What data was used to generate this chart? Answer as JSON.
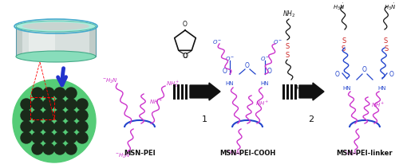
{
  "bg_color": "#ffffff",
  "pei_color": "#cc33cc",
  "blue_color": "#2244cc",
  "red_color": "#cc2222",
  "black_color": "#111111",
  "green_sphere": "#55cc77",
  "green_dark": "#339955",
  "pore_color": "#1a2a1a",
  "cyl_face": "#b8d0c8",
  "cyl_rim": "#66ccaa",
  "cyl_inner": "#d8e8e4",
  "cyl_silver": "#c0c8c4",
  "label_msn_pei": "MSN-PEI",
  "label_msn_pei_cooh": "MSN-PEI-COOH",
  "label_msn_pei_linker": "MSN-PEI-linker",
  "step1": "1",
  "step2": "2",
  "figsize": [
    5.0,
    2.11
  ],
  "dpi": 100
}
